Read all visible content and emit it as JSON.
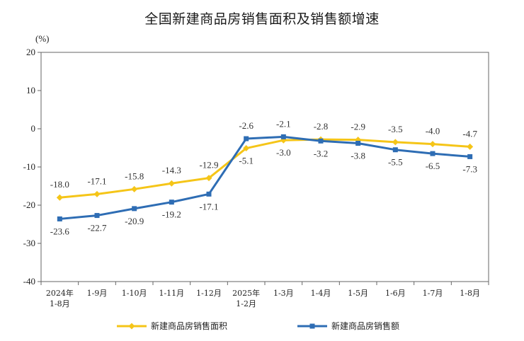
{
  "page": {
    "title": "全国新建商品房销售面积及销售额增速"
  },
  "chart_data": {
    "type": "line",
    "title": "全国新建商品房销售面积及销售额增速",
    "ylabel": "(%)",
    "xlabel": "",
    "ylim": [
      -40,
      20
    ],
    "yticks": [
      20,
      10,
      0,
      -10,
      -20,
      -30,
      -40
    ],
    "categories": [
      [
        "2024年",
        "1-8月"
      ],
      [
        "1-9月"
      ],
      [
        "1-10月"
      ],
      [
        "1-11月"
      ],
      [
        "1-12月"
      ],
      [
        "2025年",
        "1-2月"
      ],
      [
        "1-3月"
      ],
      [
        "1-4月"
      ],
      [
        "1-5月"
      ],
      [
        "1-6月"
      ],
      [
        "1-7月"
      ],
      [
        "1-8月"
      ]
    ],
    "grid": false,
    "legend_position": "bottom",
    "series": [
      {
        "name": "新建商品房销售面积",
        "color": "#F5C518",
        "values": [
          -18.0,
          -17.1,
          -15.8,
          -14.3,
          -12.9,
          -5.1,
          -3.0,
          -2.8,
          -2.9,
          -3.5,
          -4.0,
          -4.7
        ],
        "labels": [
          "-18.0",
          "-17.1",
          "-15.8",
          "-14.3",
          "-12.9",
          "-5.1",
          "-3.0",
          "-2.8",
          "-2.9",
          "-3.5",
          "-4.0",
          "-4.7"
        ]
      },
      {
        "name": "新建商品房销售额",
        "color": "#2E6DB4",
        "values": [
          -23.6,
          -22.7,
          -20.9,
          -19.2,
          -17.1,
          -2.6,
          -2.1,
          -3.2,
          -3.8,
          -5.5,
          -6.5,
          -7.3
        ],
        "labels": [
          "-23.6",
          "-22.7",
          "-20.9",
          "-19.2",
          "-17.1",
          "-2.6",
          "-2.1",
          "-3.2",
          "-3.8",
          "-5.5",
          "-6.5",
          "-7.3"
        ]
      }
    ]
  }
}
